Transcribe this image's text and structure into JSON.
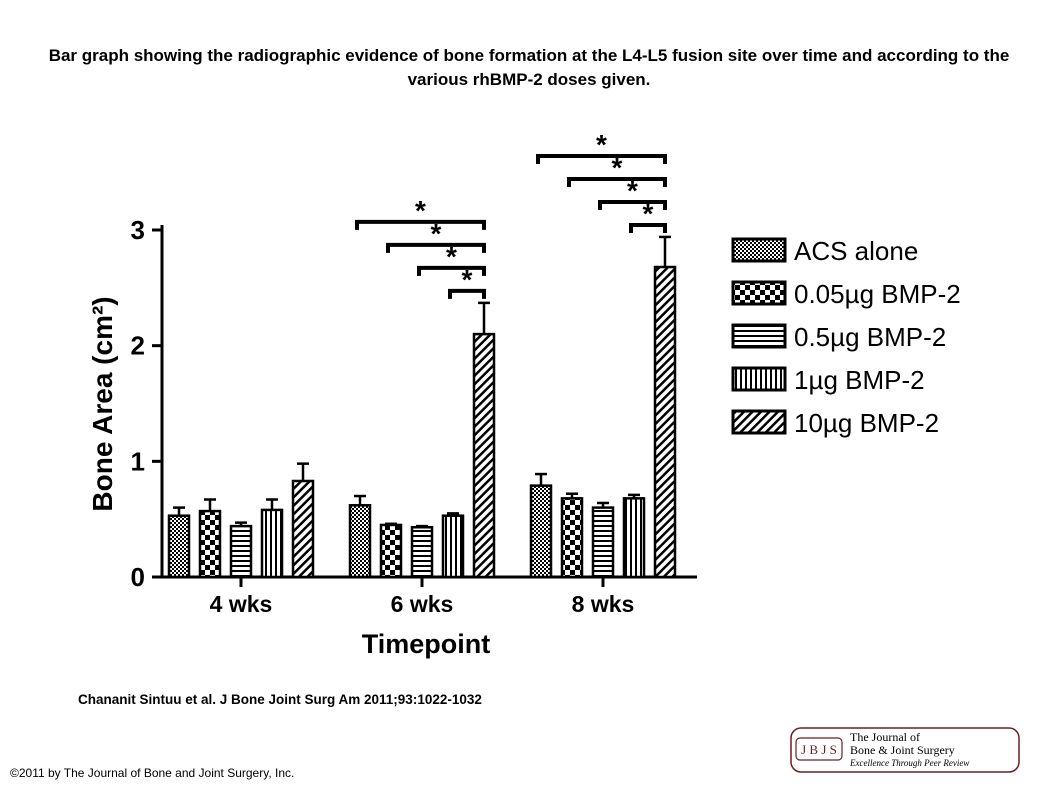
{
  "title": "Bar graph showing the radiographic evidence of bone formation at the L4-L5 fusion site over time and according to the various rhBMP-2 doses given.",
  "citation": "Chananit Sintuu et al. J Bone Joint Surg Am 2011;93:1022-1032",
  "copyright": "©2011 by The Journal of Bone and Joint Surgery, Inc.",
  "logo": {
    "abbrev": "J B J S",
    "line1": "The Journal of",
    "line2": "Bone & Joint Surgery",
    "tagline": "Excellence Through Peer Review"
  },
  "chart_data": {
    "type": "bar",
    "xlabel": "Timepoint",
    "ylabel": "Bone Area (cm²)",
    "ylim": [
      0,
      3
    ],
    "yticks": [
      "0",
      "1",
      "2",
      "3"
    ],
    "categories": [
      "4 wks",
      "6 wks",
      "8 wks"
    ],
    "legend_position": "right",
    "series": [
      {
        "name": "ACS alone",
        "pattern": "dots",
        "values": [
          0.53,
          0.62,
          0.79
        ],
        "errors": [
          0.07,
          0.08,
          0.1
        ]
      },
      {
        "name": "0.05µg BMP-2",
        "pattern": "checker",
        "values": [
          0.57,
          0.45,
          0.68
        ],
        "errors": [
          0.1,
          0.01,
          0.04
        ]
      },
      {
        "name": "0.5µg BMP-2",
        "pattern": "hlines",
        "values": [
          0.44,
          0.43,
          0.6
        ],
        "errors": [
          0.03,
          0.01,
          0.04
        ]
      },
      {
        "name": "1µg BMP-2",
        "pattern": "vlines",
        "values": [
          0.58,
          0.53,
          0.68
        ],
        "errors": [
          0.09,
          0.02,
          0.03
        ]
      },
      {
        "name": "10µg BMP-2",
        "pattern": "diag",
        "values": [
          0.83,
          2.1,
          2.68
        ],
        "errors": [
          0.15,
          0.27,
          0.26
        ]
      }
    ],
    "significance": [
      {
        "category": "6 wks",
        "from_series": 0,
        "to_series": 4,
        "label": "*"
      },
      {
        "category": "6 wks",
        "from_series": 1,
        "to_series": 4,
        "label": "*"
      },
      {
        "category": "6 wks",
        "from_series": 2,
        "to_series": 4,
        "label": "*"
      },
      {
        "category": "6 wks",
        "from_series": 3,
        "to_series": 4,
        "label": "*"
      },
      {
        "category": "8 wks",
        "from_series": 0,
        "to_series": 4,
        "label": "*"
      },
      {
        "category": "8 wks",
        "from_series": 1,
        "to_series": 4,
        "label": "*"
      },
      {
        "category": "8 wks",
        "from_series": 2,
        "to_series": 4,
        "label": "*"
      },
      {
        "category": "8 wks",
        "from_series": 3,
        "to_series": 4,
        "label": "*"
      }
    ]
  }
}
